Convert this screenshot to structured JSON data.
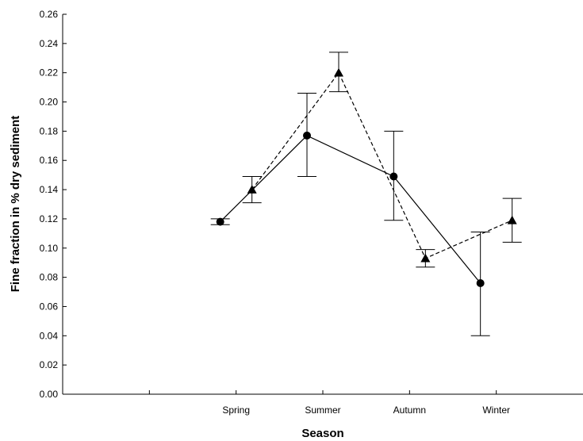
{
  "chart_data": {
    "type": "line",
    "title": "",
    "xlabel": "Season",
    "ylabel": "Fine fraction in % dry sediment",
    "categories": [
      "Spring",
      "Summer",
      "Autumn",
      "Winter"
    ],
    "ylim": [
      0,
      0.26
    ],
    "yticks": [
      "0.00",
      "0.02",
      "0.04",
      "0.06",
      "0.08",
      "0.10",
      "0.12",
      "0.14",
      "0.16",
      "0.18",
      "0.20",
      "0.22",
      "0.24",
      "0.26"
    ],
    "grid": false,
    "legend": "none",
    "series": [
      {
        "marker": "circle",
        "line_style": "solid",
        "color": "#000000",
        "values": [
          0.118,
          0.177,
          0.149,
          0.076
        ],
        "error_low": [
          0.116,
          0.149,
          0.119,
          0.04
        ],
        "error_high": [
          0.12,
          0.206,
          0.18,
          0.111
        ]
      },
      {
        "marker": "triangle",
        "line_style": "dashed",
        "color": "#000000",
        "values": [
          0.14,
          0.22,
          0.093,
          0.119
        ],
        "error_low": [
          0.131,
          0.207,
          0.087,
          0.104
        ],
        "error_high": [
          0.149,
          0.234,
          0.099,
          0.134
        ]
      }
    ]
  }
}
